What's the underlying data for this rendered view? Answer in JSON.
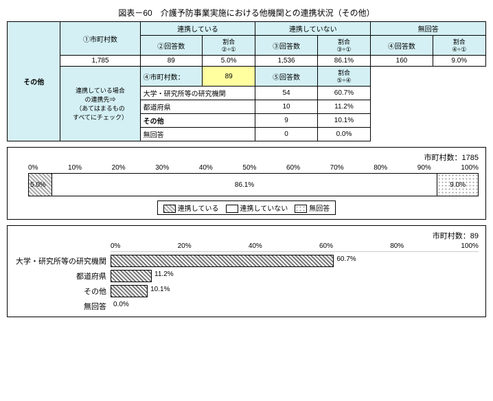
{
  "title": "図表－60　介護予防事業実施における他機関との連携状況（その他）",
  "left_category": "その他",
  "table1": {
    "col_city_count": "①市町村数",
    "h_linked": "連携している",
    "h_not_linked": "連携していない",
    "h_no_answer": "無回答",
    "sub_ans2": "②回答数",
    "sub_rate21": "割合\n②÷①",
    "sub_ans3": "③回答数",
    "sub_rate31": "割合\n③÷①",
    "sub_ans4": "④回答数",
    "sub_rate41": "割合\n④÷①",
    "city_count": "1,785",
    "v2": "89",
    "r2": "5.0%",
    "v3": "1,536",
    "r3": "86.1%",
    "v4": "160",
    "r4": "9.0%"
  },
  "table2": {
    "h_partner_if_linked": "連携している場合\nの連携先⇒\n（あてはまるもの\nすべてにチェック）",
    "h_city_num": "④市町村数：",
    "h_city_val": "89",
    "h_ans5": "⑤回答数",
    "h_rate54": "割合\n⑤÷④",
    "rows": [
      {
        "label": "大学・研究所等の研究機関",
        "val": "54",
        "rate": "60.7%"
      },
      {
        "label": "都道府県",
        "val": "10",
        "rate": "11.2%"
      },
      {
        "label": "その他",
        "val": "9",
        "rate": "10.1%"
      },
      {
        "label": "無回答",
        "val": "0",
        "rate": "0.0%"
      }
    ]
  },
  "chart1": {
    "count_label": "市町村数：1785",
    "axis": [
      "0%",
      "10%",
      "20%",
      "30%",
      "40%",
      "50%",
      "60%",
      "70%",
      "80%",
      "90%",
      "100%"
    ],
    "segments": [
      {
        "pct": 5.0,
        "label": "5.0%",
        "pattern": "pat-a"
      },
      {
        "pct": 86.1,
        "label": "86.1%",
        "pattern": "pat-b"
      },
      {
        "pct": 9.0,
        "label": "9.0%",
        "pattern": "pat-c"
      }
    ],
    "legend": [
      {
        "pattern": "pat-a",
        "label": "連携している"
      },
      {
        "pattern": "pat-b",
        "label": "連携していない"
      },
      {
        "pattern": "pat-c",
        "label": "無回答"
      }
    ]
  },
  "chart2": {
    "count_label": "市町村数：89",
    "axis": [
      "0%",
      "20%",
      "40%",
      "60%",
      "80%",
      "100%"
    ],
    "bars": [
      {
        "label": "大学・研究所等の研究機関",
        "pct": 60.7,
        "txt": "60.7%"
      },
      {
        "label": "都道府県",
        "pct": 11.2,
        "txt": "11.2%"
      },
      {
        "label": "その他",
        "pct": 10.1,
        "txt": "10.1%"
      },
      {
        "label": "無回答",
        "pct": 0.0,
        "txt": "0.0%"
      }
    ]
  }
}
